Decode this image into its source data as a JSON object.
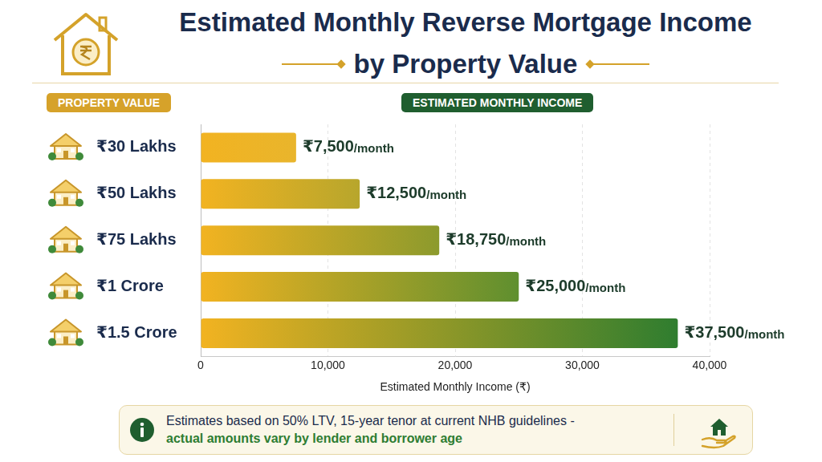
{
  "chart_data": {
    "type": "bar",
    "orientation": "horizontal",
    "title": "Estimated Monthly Reverse Mortgage Income",
    "subtitle": "by Property Value",
    "category_header": "PROPERTY VALUE",
    "value_header": "ESTIMATED MONTHLY INCOME",
    "categories": [
      "₹30 Lakhs",
      "₹50 Lakhs",
      "₹75 Lakhs",
      "₹1 Crore",
      "₹1.5 Crore"
    ],
    "values": [
      7500,
      12500,
      18750,
      25000,
      37500
    ],
    "value_labels": [
      "₹7,500/month",
      "₹12,500/month",
      "₹18,750/month",
      "₹25,000/month",
      "₹37,500/month"
    ],
    "data_labels": true,
    "colors": [
      "#e9b52c",
      "#b7a62c",
      "#8c9a2d",
      "#5f8f2f",
      "#2f7d2f"
    ],
    "xlabel": "Estimated Monthly Income (₹)",
    "xlim": [
      0,
      40000
    ],
    "xticks": [
      0,
      {
        "value": 10000,
        "label": "10,000"
      },
      {
        "value": 20000,
        "label": "20,000"
      },
      {
        "value": 30000,
        "label": "30,000"
      },
      {
        "value": 40000,
        "label": "40,000"
      }
    ],
    "grid": true,
    "annotations": [
      "Estimates based on 50% LTV, 15-year tenor at current NHB guidelines -",
      "actual amounts vary by lender and borrower age"
    ]
  }
}
